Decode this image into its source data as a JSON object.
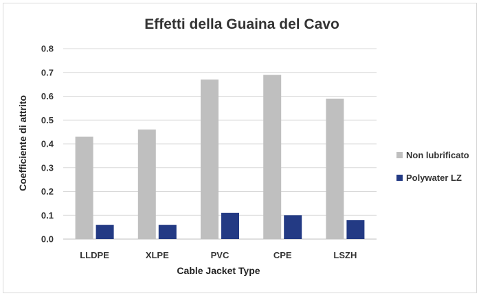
{
  "chart_data": {
    "type": "bar",
    "title": "Effetti della Guaina del Cavo",
    "xlabel": "Cable Jacket Type",
    "ylabel": "Coefficiente di attrito",
    "categories": [
      "LLDPE",
      "XLPE",
      "PVC",
      "CPE",
      "LSZH"
    ],
    "series": [
      {
        "name": "Non lubrificato",
        "values": [
          0.43,
          0.46,
          0.67,
          0.69,
          0.59
        ],
        "color": "#bfbfbf"
      },
      {
        "name": "Polywater LZ",
        "values": [
          0.06,
          0.06,
          0.11,
          0.1,
          0.08
        ],
        "color": "#233a84"
      }
    ],
    "ylim": [
      0,
      0.8
    ],
    "yticks": [
      "0.0",
      "0.1",
      "0.2",
      "0.3",
      "0.4",
      "0.5",
      "0.6",
      "0.7",
      "0.8"
    ],
    "grid": true,
    "legend_position": "right"
  }
}
